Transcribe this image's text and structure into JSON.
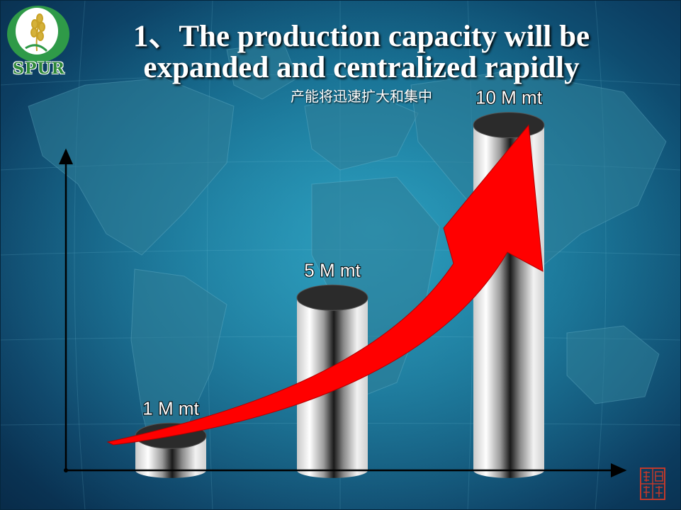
{
  "logo": {
    "text": "SPUR"
  },
  "title": "1、The production capacity will be expanded and centralized rapidly",
  "subtitle": "产能将迅速扩大和集中",
  "seal": {
    "text": "详印样书"
  },
  "colors": {
    "arrow": "#ff0000",
    "axis": "#000000",
    "text": "#ffffff"
  },
  "chart_data": {
    "type": "bar",
    "style": "3d-cylinder",
    "categories": [
      "",
      "",
      ""
    ],
    "values": [
      1,
      5,
      10
    ],
    "data_labels": [
      "1 M mt",
      "5 M mt",
      "10 M mt"
    ],
    "unit": "M mt",
    "ylim": [
      0,
      11.9
    ],
    "trend_arrow": true,
    "grid": false,
    "legend": "none"
  }
}
